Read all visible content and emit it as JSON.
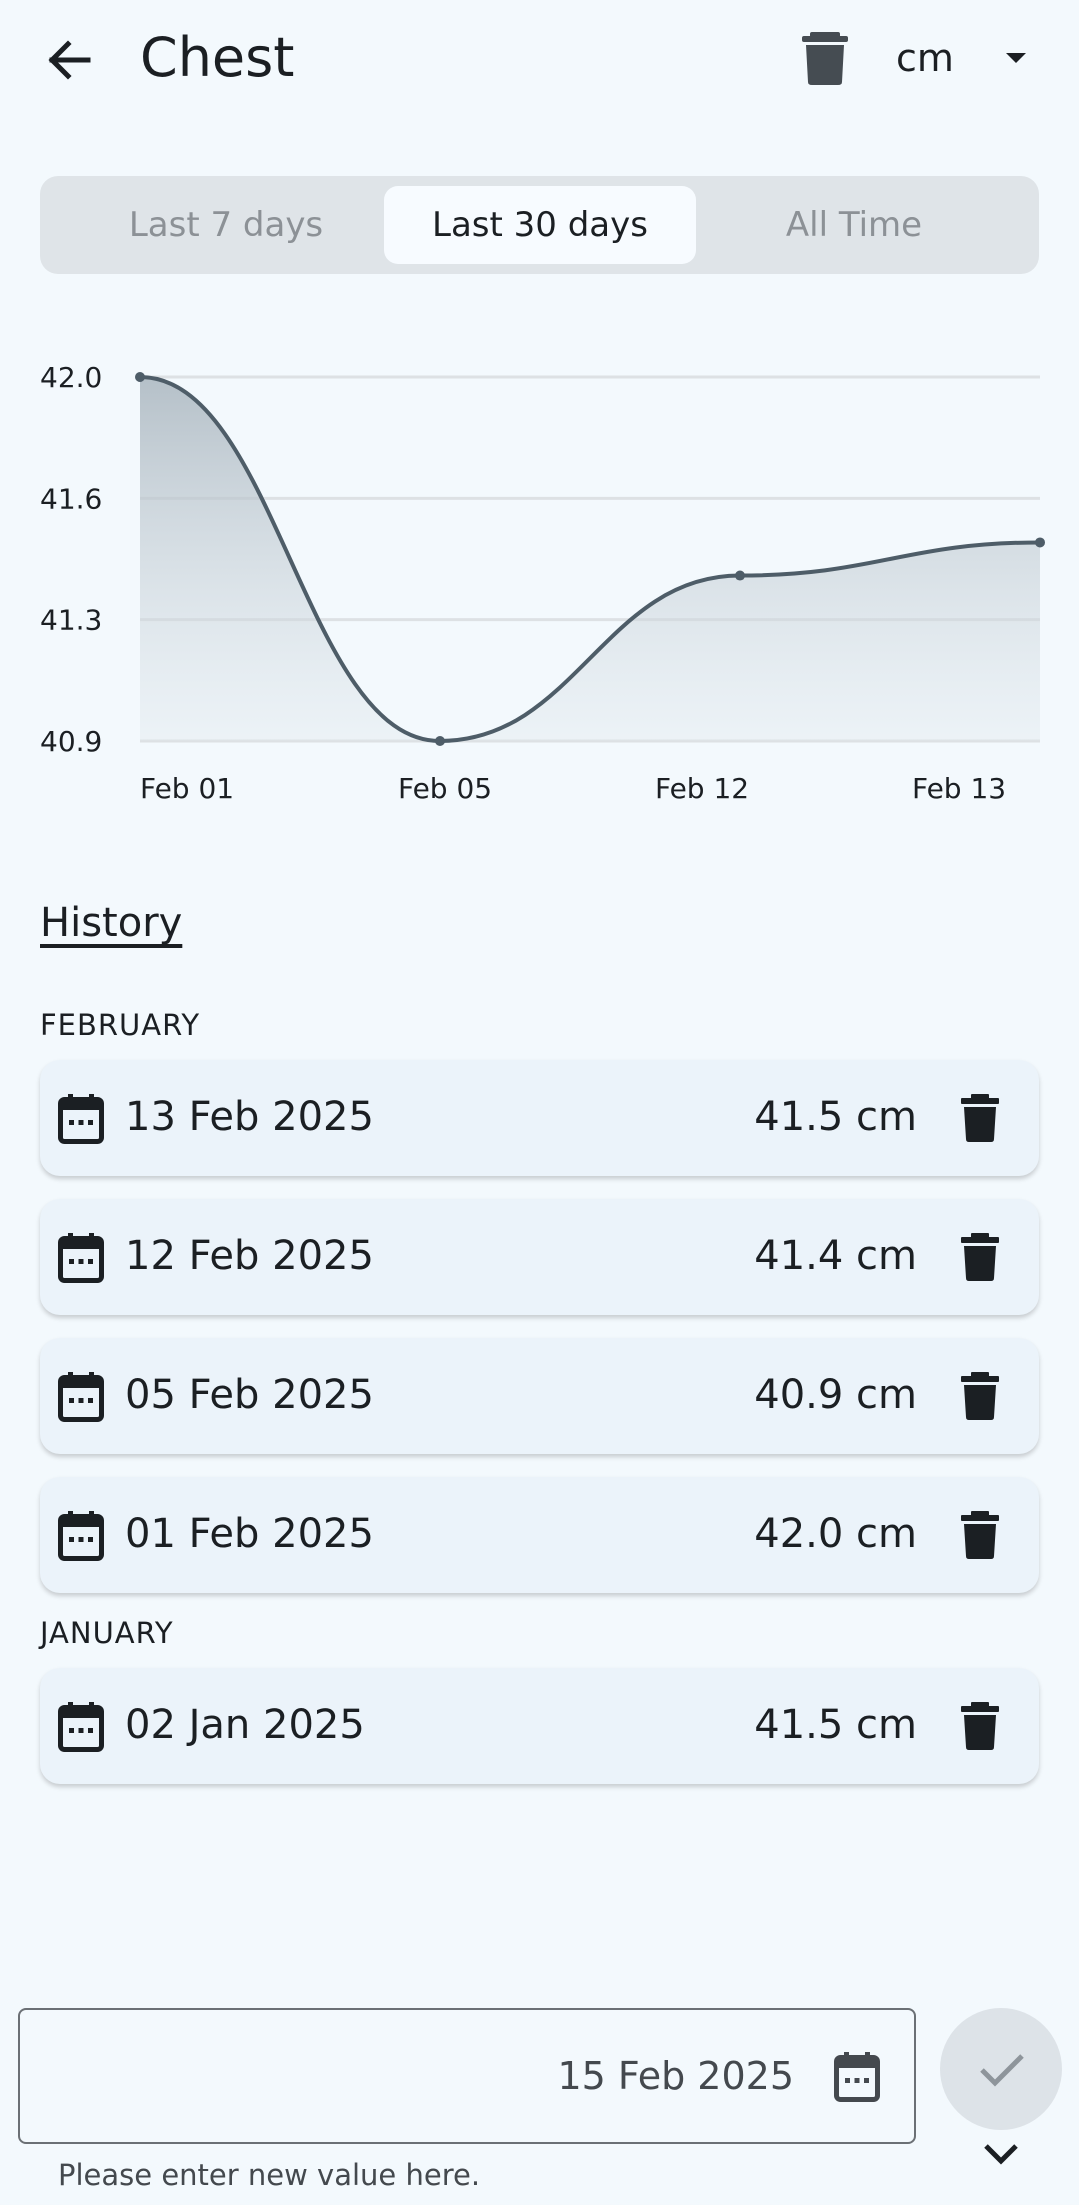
{
  "app_bar": {
    "title": "Chest",
    "unit": "cm"
  },
  "tabs": [
    {
      "label": "Last 7 days",
      "active": false
    },
    {
      "label": "Last 30 days",
      "active": true
    },
    {
      "label": "All Time",
      "active": false
    }
  ],
  "chart_data": {
    "type": "area",
    "categories": [
      "Feb 01",
      "Feb 05",
      "Feb 12",
      "Feb 13"
    ],
    "values": [
      42.0,
      40.9,
      41.4,
      41.5
    ],
    "yticks": [
      "42.0",
      "41.6",
      "41.3",
      "40.9"
    ],
    "ylim": [
      40.9,
      42.0
    ],
    "grid": true
  },
  "history": {
    "title": "History",
    "groups": [
      {
        "month": "FEBRUARY",
        "entries": [
          {
            "date": "13 Feb 2025",
            "value": "41.5 cm"
          },
          {
            "date": "12 Feb 2025",
            "value": "41.4 cm"
          },
          {
            "date": "05 Feb 2025",
            "value": "40.9 cm"
          },
          {
            "date": "01 Feb 2025",
            "value": "42.0 cm"
          }
        ]
      },
      {
        "month": "JANUARY",
        "entries": [
          {
            "date": "02 Jan 2025",
            "value": "41.5 cm"
          }
        ]
      }
    ]
  },
  "entry": {
    "date": "15 Feb 2025",
    "helper": "Please enter new value here."
  },
  "icons": {
    "back": "arrow-left-icon",
    "delete": "trash-icon",
    "calendar": "calendar-icon",
    "confirm": "check-icon",
    "expand": "chevron-down-icon",
    "caret": "caret-down-icon"
  },
  "colors": {
    "line": "#4e5d68",
    "grid": "#dde1e4",
    "background": "#f3f9fd",
    "card": "#ebf3fa"
  }
}
